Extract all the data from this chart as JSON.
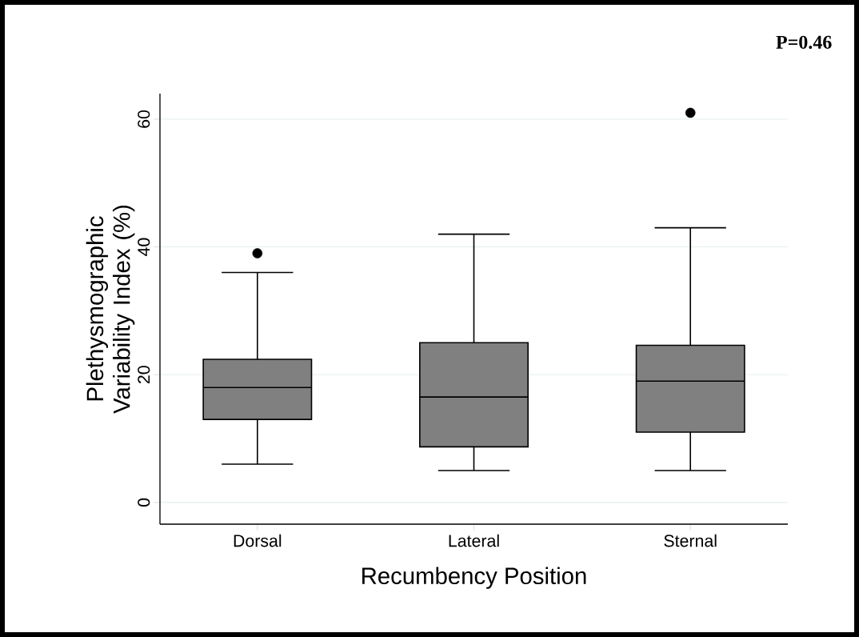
{
  "chart_data": {
    "type": "box",
    "xlabel": "Recumbency Position",
    "ylabel": "Plethysmographic Variability Index (%)",
    "annotations": [
      "P=0.46"
    ],
    "categories": [
      "Dorsal",
      "Lateral",
      "Sternal"
    ],
    "series": [
      {
        "color": "#808080",
        "boxes": [
          {
            "low": 6,
            "q1": 13,
            "median": 18,
            "q3": 22.4,
            "high": 36,
            "outliers": [
              39
            ]
          },
          {
            "low": 5,
            "q1": 8.7,
            "median": 16.5,
            "q3": 25,
            "high": 42
          },
          {
            "low": 5,
            "q1": 11,
            "median": 19,
            "q3": 24.6,
            "high": 43,
            "outliers": [
              61
            ]
          }
        ]
      }
    ],
    "ylim": [
      -3.4,
      64
    ],
    "yticks": [
      0,
      20,
      40,
      60
    ],
    "grid": "y"
  }
}
